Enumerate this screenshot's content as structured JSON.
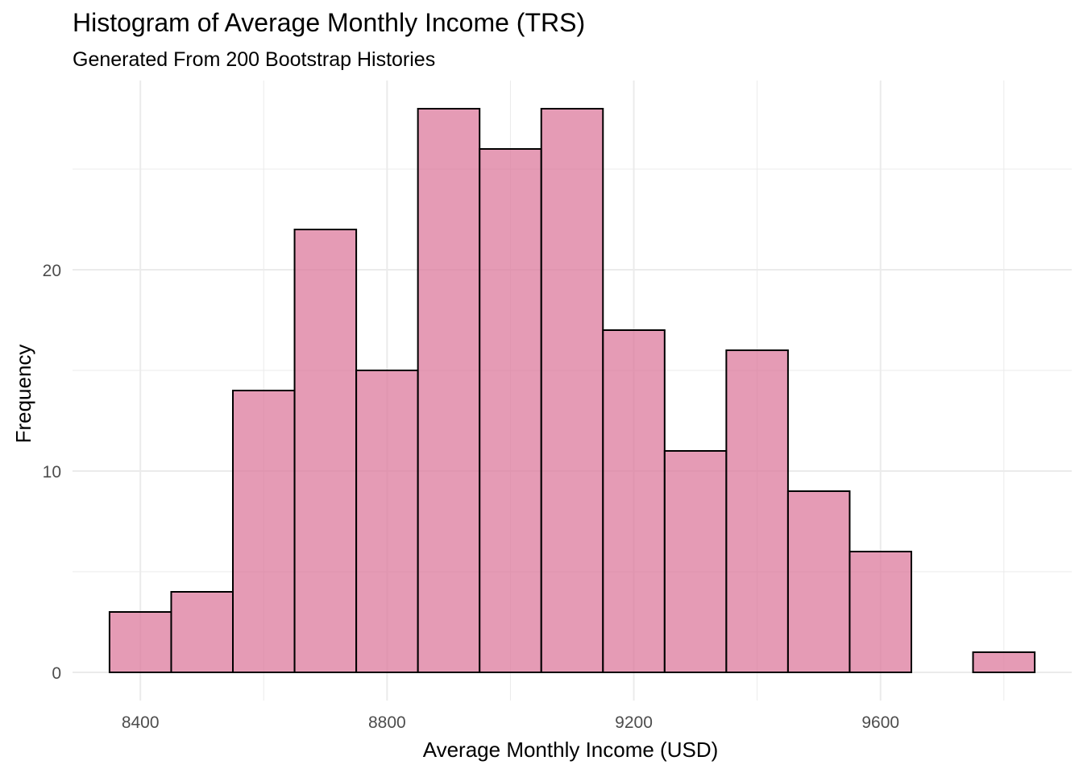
{
  "chart_data": {
    "type": "bar",
    "title": "Histogram of Average Monthly Income (TRS)",
    "subtitle": "Generated From 200 Bootstrap Histories",
    "xlabel": "Average Monthly Income (USD)",
    "ylabel": "Frequency",
    "bin_width": 100,
    "bins": [
      {
        "start": 8350,
        "end": 8450,
        "count": 3
      },
      {
        "start": 8450,
        "end": 8550,
        "count": 4
      },
      {
        "start": 8550,
        "end": 8650,
        "count": 14
      },
      {
        "start": 8650,
        "end": 8750,
        "count": 22
      },
      {
        "start": 8750,
        "end": 8850,
        "count": 15
      },
      {
        "start": 8850,
        "end": 8950,
        "count": 28
      },
      {
        "start": 8950,
        "end": 9050,
        "count": 26
      },
      {
        "start": 9050,
        "end": 9150,
        "count": 28
      },
      {
        "start": 9150,
        "end": 9250,
        "count": 17
      },
      {
        "start": 9250,
        "end": 9350,
        "count": 11
      },
      {
        "start": 9350,
        "end": 9450,
        "count": 16
      },
      {
        "start": 9450,
        "end": 9550,
        "count": 9
      },
      {
        "start": 9550,
        "end": 9650,
        "count": 6
      },
      {
        "start": 9650,
        "end": 9750,
        "count": 0
      },
      {
        "start": 9750,
        "end": 9850,
        "count": 1
      }
    ],
    "xlim": [
      8290,
      9910
    ],
    "ylim": [
      -1.4,
      29.4
    ],
    "x_ticks": [
      8400,
      8800,
      9200,
      9600
    ],
    "x_minor_ticks": [
      8600,
      9000,
      9400,
      9800
    ],
    "y_ticks": [
      0,
      10,
      20
    ],
    "y_minor_ticks": [
      5,
      15,
      25
    ],
    "grid": true,
    "legend": "none",
    "bar_fill": "#dc7a9c",
    "bar_fill_opacity": 0.75,
    "bar_stroke": "#000000",
    "grid_color": "#ebebeb",
    "tick_label_color": "#4d4d4d"
  }
}
